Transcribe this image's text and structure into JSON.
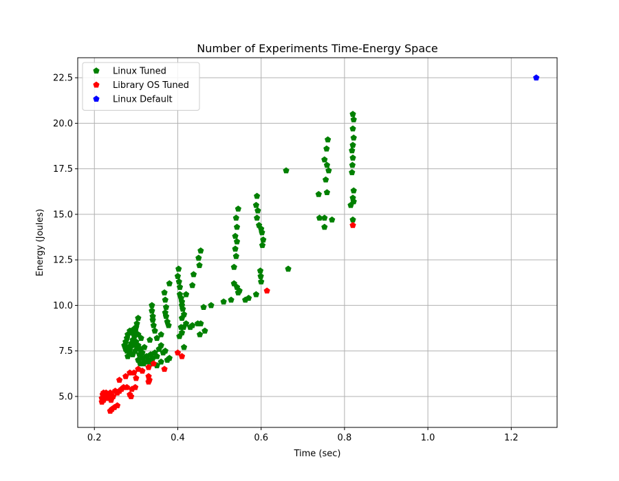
{
  "chart_data": {
    "type": "scatter",
    "title": "Number of Experiments Time-Energy Space",
    "xlabel": "Time (sec)",
    "ylabel": "Energy (Joules)",
    "xlim": [
      0.16,
      1.31
    ],
    "ylim": [
      3.3,
      23.6
    ],
    "x_ticks": [
      0.2,
      0.4,
      0.6,
      0.8,
      1.0,
      1.2
    ],
    "x_tick_labels": [
      "0.2",
      "0.4",
      "0.6",
      "0.8",
      "1.0",
      "1.2"
    ],
    "y_ticks": [
      5.0,
      7.5,
      10.0,
      12.5,
      15.0,
      17.5,
      20.0,
      22.5
    ],
    "y_tick_labels": [
      "5.0",
      "7.5",
      "10.0",
      "12.5",
      "15.0",
      "17.5",
      "20.0",
      "22.5"
    ],
    "grid": true,
    "legend_position": "upper-left",
    "marker": "pentagon",
    "series": [
      {
        "name": "Linux Tuned",
        "color": "#008000",
        "points": [
          [
            0.82,
            20.5
          ],
          [
            0.822,
            20.2
          ],
          [
            0.82,
            19.7
          ],
          [
            0.822,
            19.2
          ],
          [
            0.82,
            18.8
          ],
          [
            0.818,
            18.5
          ],
          [
            0.82,
            18.1
          ],
          [
            0.819,
            17.7
          ],
          [
            0.818,
            17.3
          ],
          [
            0.822,
            16.3
          ],
          [
            0.82,
            15.9
          ],
          [
            0.822,
            15.7
          ],
          [
            0.815,
            15.5
          ],
          [
            0.82,
            14.7
          ],
          [
            0.76,
            19.1
          ],
          [
            0.757,
            18.6
          ],
          [
            0.752,
            18.0
          ],
          [
            0.758,
            17.7
          ],
          [
            0.762,
            17.4
          ],
          [
            0.755,
            16.9
          ],
          [
            0.758,
            16.2
          ],
          [
            0.738,
            16.1
          ],
          [
            0.74,
            14.8
          ],
          [
            0.752,
            14.8
          ],
          [
            0.77,
            14.7
          ],
          [
            0.752,
            14.3
          ],
          [
            0.66,
            17.4
          ],
          [
            0.665,
            12.0
          ],
          [
            0.59,
            16.0
          ],
          [
            0.588,
            15.5
          ],
          [
            0.592,
            15.2
          ],
          [
            0.59,
            14.8
          ],
          [
            0.595,
            14.4
          ],
          [
            0.6,
            14.2
          ],
          [
            0.602,
            14.0
          ],
          [
            0.605,
            13.6
          ],
          [
            0.603,
            13.3
          ],
          [
            0.598,
            11.9
          ],
          [
            0.599,
            11.6
          ],
          [
            0.6,
            11.3
          ],
          [
            0.588,
            10.6
          ],
          [
            0.545,
            15.3
          ],
          [
            0.54,
            14.8
          ],
          [
            0.542,
            14.3
          ],
          [
            0.538,
            13.8
          ],
          [
            0.542,
            13.5
          ],
          [
            0.538,
            13.1
          ],
          [
            0.54,
            12.7
          ],
          [
            0.535,
            12.1
          ],
          [
            0.535,
            11.2
          ],
          [
            0.542,
            11.0
          ],
          [
            0.548,
            10.8
          ],
          [
            0.545,
            10.7
          ],
          [
            0.57,
            10.4
          ],
          [
            0.562,
            10.3
          ],
          [
            0.528,
            10.3
          ],
          [
            0.51,
            10.2
          ],
          [
            0.48,
            10.0
          ],
          [
            0.462,
            9.9
          ],
          [
            0.455,
            13.0
          ],
          [
            0.45,
            12.6
          ],
          [
            0.452,
            12.2
          ],
          [
            0.438,
            11.7
          ],
          [
            0.435,
            11.1
          ],
          [
            0.42,
            10.6
          ],
          [
            0.455,
            9.0
          ],
          [
            0.448,
            9.0
          ],
          [
            0.465,
            8.6
          ],
          [
            0.453,
            8.4
          ],
          [
            0.435,
            8.9
          ],
          [
            0.43,
            8.8
          ],
          [
            0.42,
            9.0
          ],
          [
            0.408,
            8.8
          ],
          [
            0.414,
            8.8
          ],
          [
            0.41,
            8.5
          ],
          [
            0.404,
            8.3
          ],
          [
            0.402,
            12.0
          ],
          [
            0.4,
            11.6
          ],
          [
            0.403,
            11.3
          ],
          [
            0.405,
            11.0
          ],
          [
            0.405,
            10.6
          ],
          [
            0.408,
            10.4
          ],
          [
            0.41,
            10.2
          ],
          [
            0.41,
            10.0
          ],
          [
            0.412,
            9.8
          ],
          [
            0.415,
            9.5
          ],
          [
            0.41,
            9.3
          ],
          [
            0.415,
            7.7
          ],
          [
            0.38,
            11.2
          ],
          [
            0.368,
            10.7
          ],
          [
            0.37,
            10.3
          ],
          [
            0.372,
            9.9
          ],
          [
            0.37,
            9.6
          ],
          [
            0.372,
            9.4
          ],
          [
            0.375,
            9.1
          ],
          [
            0.378,
            8.9
          ],
          [
            0.338,
            10.0
          ],
          [
            0.338,
            9.7
          ],
          [
            0.34,
            9.4
          ],
          [
            0.34,
            9.2
          ],
          [
            0.342,
            8.9
          ],
          [
            0.345,
            8.6
          ],
          [
            0.35,
            8.2
          ],
          [
            0.36,
            8.4
          ],
          [
            0.333,
            8.1
          ],
          [
            0.305,
            9.3
          ],
          [
            0.302,
            9.0
          ],
          [
            0.3,
            8.8
          ],
          [
            0.298,
            8.6
          ],
          [
            0.295,
            8.7
          ],
          [
            0.29,
            8.5
          ],
          [
            0.285,
            8.6
          ],
          [
            0.28,
            8.4
          ],
          [
            0.278,
            8.2
          ],
          [
            0.275,
            8.0
          ],
          [
            0.272,
            7.8
          ],
          [
            0.275,
            7.6
          ],
          [
            0.278,
            7.5
          ],
          [
            0.282,
            7.7
          ],
          [
            0.288,
            7.9
          ],
          [
            0.292,
            8.1
          ],
          [
            0.296,
            8.3
          ],
          [
            0.3,
            8.0
          ],
          [
            0.305,
            7.8
          ],
          [
            0.31,
            7.6
          ],
          [
            0.315,
            7.4
          ],
          [
            0.32,
            7.7
          ],
          [
            0.312,
            8.2
          ],
          [
            0.305,
            8.4
          ],
          [
            0.298,
            7.5
          ],
          [
            0.292,
            7.3
          ],
          [
            0.285,
            7.4
          ],
          [
            0.28,
            7.2
          ],
          [
            0.285,
            7.6
          ],
          [
            0.29,
            7.8
          ],
          [
            0.295,
            7.9
          ],
          [
            0.302,
            7.7
          ],
          [
            0.308,
            7.3
          ],
          [
            0.315,
            7.1
          ],
          [
            0.32,
            6.9
          ],
          [
            0.325,
            7.2
          ],
          [
            0.33,
            7.0
          ],
          [
            0.335,
            7.3
          ],
          [
            0.34,
            7.1
          ],
          [
            0.345,
            7.4
          ],
          [
            0.35,
            7.2
          ],
          [
            0.355,
            7.6
          ],
          [
            0.36,
            7.8
          ],
          [
            0.365,
            7.4
          ],
          [
            0.37,
            7.5
          ],
          [
            0.375,
            7.0
          ],
          [
            0.38,
            7.1
          ],
          [
            0.31,
            6.8
          ],
          [
            0.305,
            7.0
          ],
          [
            0.318,
            6.8
          ],
          [
            0.33,
            6.9
          ],
          [
            0.34,
            6.8
          ],
          [
            0.35,
            6.7
          ],
          [
            0.36,
            6.9
          ]
        ]
      },
      {
        "name": "Library OS Tuned",
        "color": "#ff0000",
        "points": [
          [
            0.82,
            14.4
          ],
          [
            0.614,
            10.8
          ],
          [
            0.4,
            7.4
          ],
          [
            0.41,
            7.2
          ],
          [
            0.368,
            6.5
          ],
          [
            0.342,
            6.8
          ],
          [
            0.33,
            6.6
          ],
          [
            0.315,
            6.4
          ],
          [
            0.305,
            6.5
          ],
          [
            0.295,
            6.3
          ],
          [
            0.285,
            6.3
          ],
          [
            0.275,
            6.1
          ],
          [
            0.26,
            5.9
          ],
          [
            0.33,
            6.1
          ],
          [
            0.332,
            5.9
          ],
          [
            0.33,
            5.8
          ],
          [
            0.3,
            6.0
          ],
          [
            0.298,
            5.5
          ],
          [
            0.29,
            5.4
          ],
          [
            0.278,
            5.5
          ],
          [
            0.27,
            5.5
          ],
          [
            0.265,
            5.4
          ],
          [
            0.26,
            5.3
          ],
          [
            0.255,
            5.2
          ],
          [
            0.25,
            5.3
          ],
          [
            0.245,
            5.0
          ],
          [
            0.238,
            5.2
          ],
          [
            0.232,
            5.1
          ],
          [
            0.228,
            5.2
          ],
          [
            0.222,
            5.2
          ],
          [
            0.22,
            5.1
          ],
          [
            0.218,
            4.9
          ],
          [
            0.222,
            4.8
          ],
          [
            0.218,
            4.7
          ],
          [
            0.228,
            4.9
          ],
          [
            0.235,
            4.9
          ],
          [
            0.24,
            4.8
          ],
          [
            0.242,
            5.0
          ],
          [
            0.285,
            5.1
          ],
          [
            0.288,
            5.0
          ],
          [
            0.255,
            4.5
          ],
          [
            0.248,
            4.4
          ],
          [
            0.242,
            4.3
          ],
          [
            0.238,
            4.2
          ]
        ]
      },
      {
        "name": "Linux Default",
        "color": "#0000ff",
        "points": [
          [
            1.26,
            22.5
          ]
        ]
      }
    ]
  }
}
